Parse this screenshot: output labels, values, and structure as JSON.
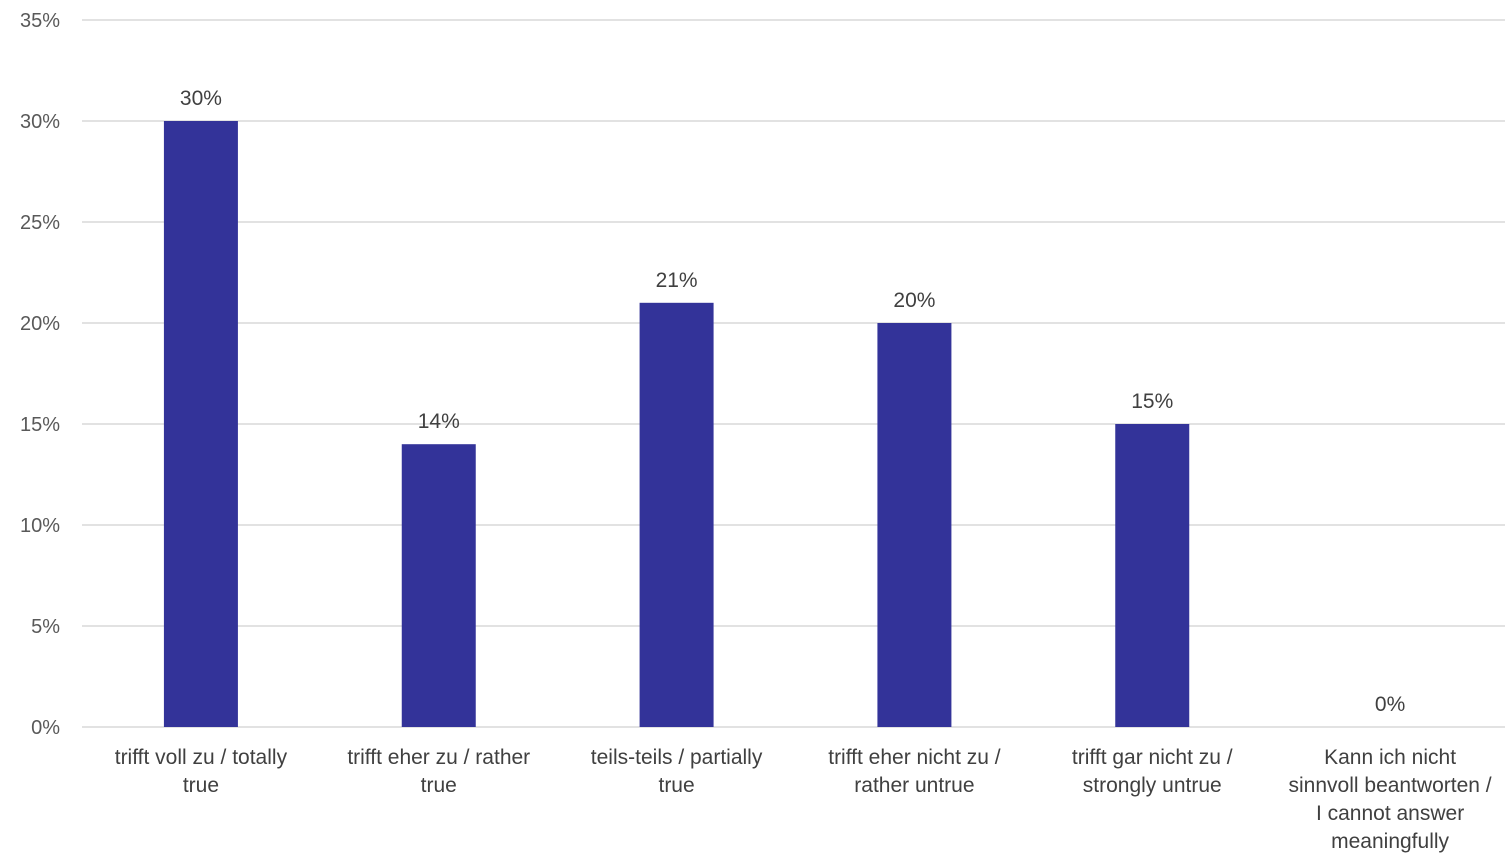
{
  "chart_data": {
    "type": "bar",
    "title": "",
    "xlabel": "",
    "ylabel": "",
    "categories": [
      [
        "trifft voll zu / totally",
        "true"
      ],
      [
        "trifft eher zu / rather",
        "true"
      ],
      [
        "teils-teils / partially",
        "true"
      ],
      [
        "trifft eher nicht zu /",
        "rather untrue"
      ],
      [
        "trifft gar nicht zu /",
        "strongly untrue"
      ],
      [
        "Kann ich nicht",
        "sinnvoll beantworten /",
        "I cannot answer",
        "meaningfully"
      ]
    ],
    "values": [
      30,
      14,
      21,
      20,
      15,
      0
    ],
    "data_labels": [
      "30%",
      "14%",
      "21%",
      "20%",
      "15%",
      "0%"
    ],
    "ylim": [
      0,
      35
    ],
    "yticks": [
      0,
      5,
      10,
      15,
      20,
      25,
      30,
      35
    ],
    "ytick_labels": [
      "0%",
      "5%",
      "10%",
      "15%",
      "20%",
      "25%",
      "30%",
      "35%"
    ],
    "grid": true,
    "legend": "none",
    "bar_color": "#333399",
    "grid_color": "#d9d9d9"
  }
}
